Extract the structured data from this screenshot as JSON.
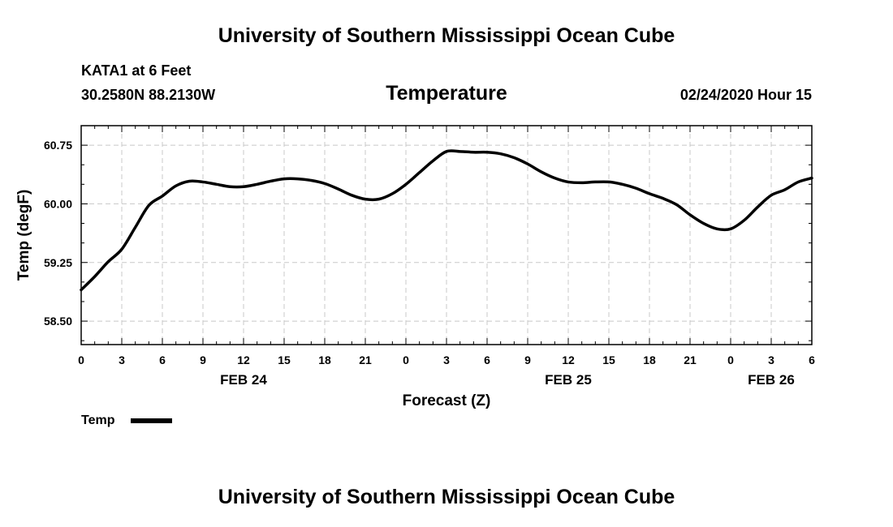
{
  "header": {
    "title": "University of Southern Mississippi Ocean Cube"
  },
  "footer": {
    "title": "University of Southern Mississippi Ocean Cube"
  },
  "station": {
    "name": "KATA1 at 6 Feet",
    "coords": "30.2580N 88.2130W"
  },
  "datetime": "02/24/2020 Hour 15",
  "chart_data": {
    "type": "line",
    "title": "Temperature",
    "xlabel": "Forecast (Z)",
    "ylabel": "Temp (degF)",
    "ylim": [
      58.2,
      61.0
    ],
    "xlim": [
      0,
      54
    ],
    "yticks": [
      58.5,
      59.25,
      60.0,
      60.75
    ],
    "ytick_labels": [
      "58.50",
      "59.25",
      "60.00",
      "60.75"
    ],
    "xticks": [
      0,
      3,
      6,
      9,
      12,
      15,
      18,
      21,
      24,
      27,
      30,
      33,
      36,
      39,
      42,
      45,
      48,
      51,
      54
    ],
    "xtick_labels": [
      "0",
      "3",
      "6",
      "9",
      "12",
      "15",
      "18",
      "21",
      "0",
      "3",
      "6",
      "9",
      "12",
      "15",
      "18",
      "21",
      "0",
      "3",
      "6"
    ],
    "date_labels": [
      {
        "x": 12,
        "label": "FEB 24"
      },
      {
        "x": 36,
        "label": "FEB 25"
      },
      {
        "x": 51,
        "label": "FEB 26"
      }
    ],
    "grid": true,
    "legend": "bottom-left",
    "series": [
      {
        "name": "Temp",
        "color": "#000000",
        "x": [
          0,
          1,
          2,
          3,
          4,
          5,
          6,
          7,
          8,
          9,
          10,
          11,
          12,
          13,
          14,
          15,
          16,
          17,
          18,
          19,
          20,
          21,
          22,
          23,
          24,
          25,
          26,
          27,
          28,
          29,
          30,
          31,
          32,
          33,
          34,
          35,
          36,
          37,
          38,
          39,
          40,
          41,
          42,
          43,
          44,
          45,
          46,
          47,
          48,
          49,
          50,
          51,
          52,
          53,
          54
        ],
        "values": [
          58.9,
          59.07,
          59.26,
          59.42,
          59.7,
          59.98,
          60.1,
          60.23,
          60.29,
          60.28,
          60.25,
          60.22,
          60.22,
          60.25,
          60.29,
          60.32,
          60.32,
          60.3,
          60.26,
          60.19,
          60.11,
          60.06,
          60.06,
          60.13,
          60.25,
          60.4,
          60.55,
          60.67,
          60.67,
          60.66,
          60.66,
          60.64,
          60.59,
          60.51,
          60.41,
          60.33,
          60.28,
          60.27,
          60.28,
          60.28,
          60.25,
          60.2,
          60.13,
          60.07,
          59.99,
          59.86,
          59.75,
          59.68,
          59.68,
          59.79,
          59.96,
          60.11,
          60.18,
          60.28,
          60.33
        ]
      }
    ]
  }
}
